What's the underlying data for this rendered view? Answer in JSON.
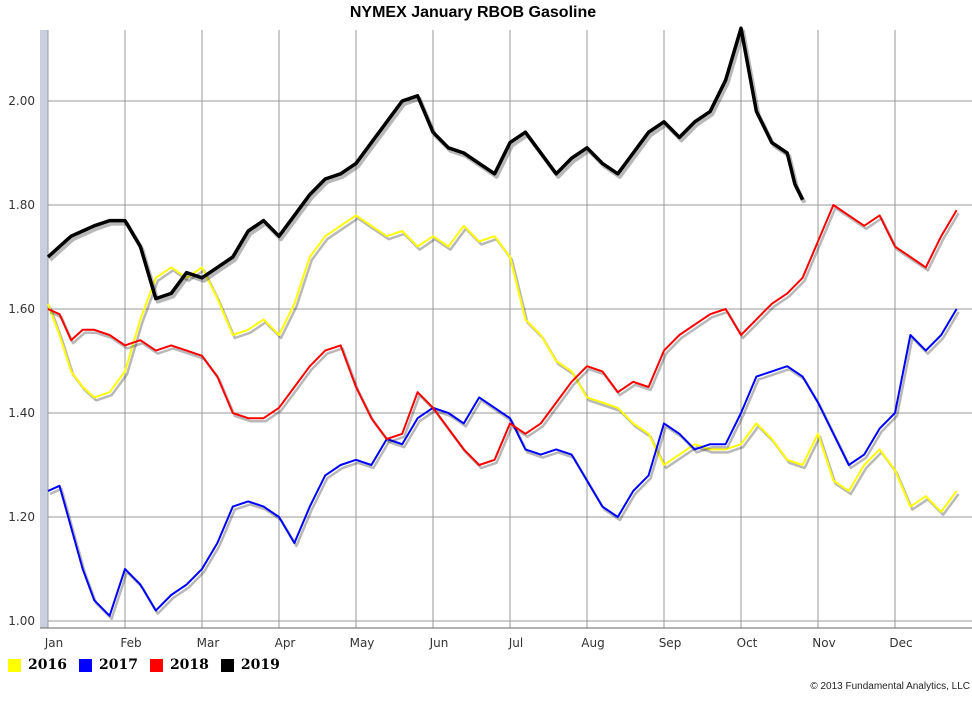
{
  "chart_data": {
    "type": "line",
    "title": "NYMEX January RBOB Gasoline",
    "xlabel": "",
    "ylabel": "",
    "x_ticks": [
      "Jan",
      "Feb",
      "Mar",
      "Apr",
      "May",
      "Jun",
      "Jul",
      "Aug",
      "Sep",
      "Oct",
      "Nov",
      "Dec"
    ],
    "y_ticks": [
      "1.00",
      "1.20",
      "1.40",
      "1.60",
      "1.80",
      "2.00"
    ],
    "ylim": [
      0.99,
      2.14
    ],
    "grid": true,
    "legend_position": "bottom-left",
    "x_unit": "month index (0 = Jan 1)",
    "series": [
      {
        "name": "2016",
        "color": "#ffff00",
        "x": [
          0,
          0.15,
          0.3,
          0.45,
          0.6,
          0.8,
          1.0,
          1.2,
          1.4,
          1.6,
          1.8,
          2.0,
          2.2,
          2.4,
          2.6,
          2.8,
          3.0,
          3.2,
          3.4,
          3.6,
          3.8,
          4.0,
          4.2,
          4.4,
          4.6,
          4.8,
          5.0,
          5.2,
          5.4,
          5.6,
          5.8,
          6.0,
          6.2,
          6.4,
          6.6,
          6.8,
          7.0,
          7.2,
          7.4,
          7.6,
          7.8,
          8.0,
          8.2,
          8.4,
          8.6,
          8.8,
          9.0,
          9.2,
          9.4,
          9.6,
          9.8,
          10.0,
          10.2,
          10.4,
          10.6,
          10.8,
          11.0,
          11.2,
          11.4,
          11.6,
          11.8
        ],
        "values": [
          1.61,
          1.55,
          1.48,
          1.45,
          1.43,
          1.44,
          1.48,
          1.58,
          1.66,
          1.68,
          1.66,
          1.68,
          1.62,
          1.55,
          1.56,
          1.58,
          1.55,
          1.61,
          1.7,
          1.74,
          1.76,
          1.78,
          1.76,
          1.74,
          1.75,
          1.72,
          1.74,
          1.72,
          1.76,
          1.73,
          1.74,
          1.7,
          1.58,
          1.55,
          1.5,
          1.48,
          1.43,
          1.42,
          1.41,
          1.38,
          1.36,
          1.3,
          1.32,
          1.34,
          1.33,
          1.33,
          1.34,
          1.38,
          1.35,
          1.31,
          1.3,
          1.36,
          1.27,
          1.25,
          1.3,
          1.33,
          1.29,
          1.22,
          1.24,
          1.21,
          1.25
        ]
      },
      {
        "name": "2017",
        "color": "#0000ff",
        "x": [
          0,
          0.15,
          0.3,
          0.45,
          0.6,
          0.8,
          1.0,
          1.2,
          1.4,
          1.6,
          1.8,
          2.0,
          2.2,
          2.4,
          2.6,
          2.8,
          3.0,
          3.2,
          3.4,
          3.6,
          3.8,
          4.0,
          4.2,
          4.4,
          4.6,
          4.8,
          5.0,
          5.2,
          5.4,
          5.6,
          5.8,
          6.0,
          6.2,
          6.4,
          6.6,
          6.8,
          7.0,
          7.2,
          7.4,
          7.6,
          7.8,
          8.0,
          8.2,
          8.4,
          8.6,
          8.8,
          9.0,
          9.2,
          9.4,
          9.6,
          9.8,
          10.0,
          10.2,
          10.4,
          10.6,
          10.8,
          11.0,
          11.2,
          11.4,
          11.6,
          11.8
        ],
        "values": [
          1.25,
          1.26,
          1.18,
          1.1,
          1.04,
          1.01,
          1.1,
          1.07,
          1.02,
          1.05,
          1.07,
          1.1,
          1.15,
          1.22,
          1.23,
          1.22,
          1.2,
          1.15,
          1.22,
          1.28,
          1.3,
          1.31,
          1.3,
          1.35,
          1.34,
          1.39,
          1.41,
          1.4,
          1.38,
          1.43,
          1.41,
          1.39,
          1.33,
          1.32,
          1.33,
          1.32,
          1.27,
          1.22,
          1.2,
          1.25,
          1.28,
          1.38,
          1.36,
          1.33,
          1.34,
          1.34,
          1.4,
          1.47,
          1.48,
          1.49,
          1.47,
          1.42,
          1.36,
          1.3,
          1.32,
          1.37,
          1.4,
          1.55,
          1.52,
          1.55,
          1.6
        ]
      },
      {
        "name": "2018",
        "color": "#ff0000",
        "x": [
          0,
          0.15,
          0.3,
          0.45,
          0.6,
          0.8,
          1.0,
          1.2,
          1.4,
          1.6,
          1.8,
          2.0,
          2.2,
          2.4,
          2.6,
          2.8,
          3.0,
          3.2,
          3.4,
          3.6,
          3.8,
          4.0,
          4.2,
          4.4,
          4.6,
          4.8,
          5.0,
          5.2,
          5.4,
          5.6,
          5.8,
          6.0,
          6.2,
          6.4,
          6.6,
          6.8,
          7.0,
          7.2,
          7.4,
          7.6,
          7.8,
          8.0,
          8.2,
          8.4,
          8.6,
          8.8,
          9.0,
          9.2,
          9.4,
          9.6,
          9.8,
          10.0,
          10.2,
          10.4,
          10.6,
          10.8,
          11.0,
          11.2,
          11.4,
          11.6,
          11.8
        ],
        "values": [
          1.6,
          1.59,
          1.54,
          1.56,
          1.56,
          1.55,
          1.53,
          1.54,
          1.52,
          1.53,
          1.52,
          1.51,
          1.47,
          1.4,
          1.39,
          1.39,
          1.41,
          1.45,
          1.49,
          1.52,
          1.53,
          1.45,
          1.39,
          1.35,
          1.36,
          1.44,
          1.41,
          1.37,
          1.33,
          1.3,
          1.31,
          1.38,
          1.36,
          1.38,
          1.42,
          1.46,
          1.49,
          1.48,
          1.44,
          1.46,
          1.45,
          1.52,
          1.55,
          1.57,
          1.59,
          1.6,
          1.55,
          1.58,
          1.61,
          1.63,
          1.66,
          1.73,
          1.8,
          1.78,
          1.76,
          1.78,
          1.72,
          1.7,
          1.68,
          1.74,
          1.79
        ]
      },
      {
        "name": "2019",
        "color": "#000000",
        "x": [
          0,
          0.15,
          0.3,
          0.45,
          0.6,
          0.8,
          1.0,
          1.2,
          1.4,
          1.6,
          1.8,
          2.0,
          2.2,
          2.4,
          2.6,
          2.8,
          3.0,
          3.2,
          3.4,
          3.6,
          3.8,
          4.0,
          4.2,
          4.4,
          4.6,
          4.8,
          5.0,
          5.2,
          5.4,
          5.6,
          5.8,
          6.0,
          6.2,
          6.4,
          6.6,
          6.8,
          7.0,
          7.2,
          7.4,
          7.6,
          7.8,
          8.0,
          8.2,
          8.4,
          8.6,
          8.8,
          9.0,
          9.2,
          9.4,
          9.6,
          9.7,
          9.8
        ],
        "values": [
          1.7,
          1.72,
          1.74,
          1.75,
          1.76,
          1.77,
          1.77,
          1.72,
          1.62,
          1.63,
          1.67,
          1.66,
          1.68,
          1.7,
          1.75,
          1.77,
          1.74,
          1.78,
          1.82,
          1.85,
          1.86,
          1.88,
          1.92,
          1.96,
          2.0,
          2.01,
          1.94,
          1.91,
          1.9,
          1.88,
          1.86,
          1.92,
          1.94,
          1.9,
          1.86,
          1.89,
          1.91,
          1.88,
          1.86,
          1.9,
          1.94,
          1.96,
          1.93,
          1.96,
          1.98,
          2.04,
          2.14,
          1.98,
          1.92,
          1.9,
          1.84,
          1.81
        ]
      }
    ]
  },
  "legend": {
    "items": [
      {
        "label": "2016",
        "color": "#ffff00"
      },
      {
        "label": "2017",
        "color": "#0000ff"
      },
      {
        "label": "2018",
        "color": "#ff0000"
      },
      {
        "label": "2019",
        "color": "#000000"
      }
    ]
  },
  "footer": {
    "copyright": "© 2013 Fundamental Analytics, LLC"
  }
}
